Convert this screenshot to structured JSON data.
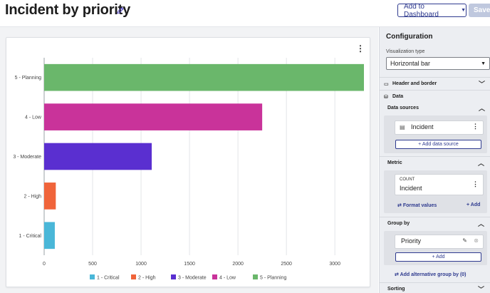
{
  "header": {
    "title": "Incident by priority",
    "add_to_dashboard": "Add to Dashboard",
    "save": "Save"
  },
  "panel": {
    "title": "Configuration",
    "viz_label": "Visualization type",
    "viz_value": "Horizontal bar",
    "header_border": "Header and border",
    "data": "Data",
    "data_sources": "Data sources",
    "source_name": "Incident",
    "add_source": "+ Add data source",
    "metric": "Metric",
    "metric_agg": "COUNT",
    "metric_table": "Incident",
    "format_values": "Format values",
    "add_metric": "+ Add",
    "group_by": "Group by",
    "group_field": "Priority",
    "add_group": "+ Add",
    "alt_group": "Add alternative group by (0)",
    "sorting": "Sorting"
  },
  "chart_data": {
    "type": "bar",
    "orientation": "horizontal",
    "categories": [
      "1 - Critical",
      "2 - High",
      "3 - Moderate",
      "4 - Low",
      "5 - Planning"
    ],
    "values": [
      110,
      120,
      1110,
      2250,
      3300
    ],
    "colors": [
      "#4ab7d8",
      "#f0643a",
      "#5a2fd0",
      "#c9339a",
      "#6ab76b"
    ],
    "xlim": [
      0,
      3300
    ],
    "xticks": [
      0,
      500,
      1000,
      1500,
      2000,
      2500,
      3000
    ],
    "grid": true,
    "legend_position": "bottom",
    "legend": [
      "1 - Critical",
      "2 - High",
      "3 - Moderate",
      "4 - Low",
      "5 - Planning"
    ]
  }
}
